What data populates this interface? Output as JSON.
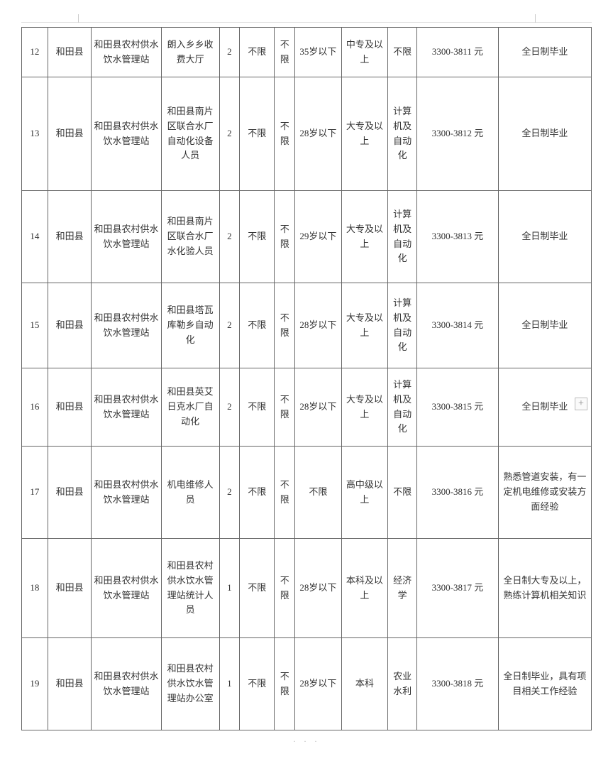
{
  "table": {
    "type": "table",
    "background_color": "#ffffff",
    "border_color": "#666666",
    "text_color": "#333333",
    "font_family": "SimSun",
    "font_size": 13,
    "column_widths_pct": [
      4.5,
      7.5,
      12,
      10,
      3.5,
      6,
      3.5,
      8,
      8,
      5,
      14,
      16
    ],
    "rows": [
      {
        "idx": "12",
        "area": "和田县",
        "unit": "和田县农村供水饮水管理站",
        "post": "朗入乡乡收费大厅",
        "num": "2",
        "sex": "不限",
        "eth": "不限",
        "age": "35岁以下",
        "edu": "中专及以上",
        "major": "不限",
        "sal": "3300-3811 元",
        "note": "全日制毕业"
      },
      {
        "idx": "13",
        "area": "和田县",
        "unit": "和田县农村供水饮水管理站",
        "post": "和田县南片区联合水厂自动化设备人员",
        "num": "2",
        "sex": "不限",
        "eth": "不限",
        "age": "28岁以下",
        "edu": "大专及以上",
        "major": "计算机及自动化",
        "sal": "3300-3812 元",
        "note": "全日制毕业"
      },
      {
        "idx": "14",
        "area": "和田县",
        "unit": "和田县农村供水饮水管理站",
        "post": "和田县南片区联合水厂水化验人员",
        "num": "2",
        "sex": "不限",
        "eth": "不限",
        "age": "29岁以下",
        "edu": "大专及以上",
        "major": "计算机及自动化",
        "sal": "3300-3813 元",
        "note": "全日制毕业"
      },
      {
        "idx": "15",
        "area": "和田县",
        "unit": "和田县农村供水饮水管理站",
        "post": "和田县塔瓦库勒乡自动化",
        "num": "2",
        "sex": "不限",
        "eth": "不限",
        "age": "28岁以下",
        "edu": "大专及以上",
        "major": "计算机及自动化",
        "sal": "3300-3814 元",
        "note": "全日制毕业"
      },
      {
        "idx": "16",
        "area": "和田县",
        "unit": "和田县农村供水饮水管理站",
        "post": "和田县英艾日克水厂自动化",
        "num": "2",
        "sex": "不限",
        "eth": "不限",
        "age": "28岁以下",
        "edu": "大专及以上",
        "major": "计算机及自动化",
        "sal": "3300-3815 元",
        "note": "全日制毕业"
      },
      {
        "idx": "17",
        "area": "和田县",
        "unit": "和田县农村供水饮水管理站",
        "post": "机电维修人员",
        "num": "2",
        "sex": "不限",
        "eth": "不限",
        "age": "不限",
        "edu": "高中级以上",
        "major": "不限",
        "sal": "3300-3816 元",
        "note": "熟悉管道安装，有一定机电维修或安装方面经验"
      },
      {
        "idx": "18",
        "area": "和田县",
        "unit": "和田县农村供水饮水管理站",
        "post": "和田县农村供水饮水管理站统计人员",
        "num": "1",
        "sex": "不限",
        "eth": "不限",
        "age": "28岁以下",
        "edu": "本科及以上",
        "major": "经济学",
        "sal": "3300-3817 元",
        "note": "全日制大专及以上，熟练计算机相关知识"
      },
      {
        "idx": "19",
        "area": "和田县",
        "unit": "和田县农村供水饮水管理站",
        "post": "和田县农村供水饮水管理站办公室",
        "num": "1",
        "sex": "不限",
        "eth": "不限",
        "age": "28岁以下",
        "edu": "本科",
        "major": "农业水利",
        "sal": "3300-3818 元",
        "note": "全日制毕业，具有项目相关工作经验"
      }
    ]
  },
  "footer_mark": "· · ·"
}
